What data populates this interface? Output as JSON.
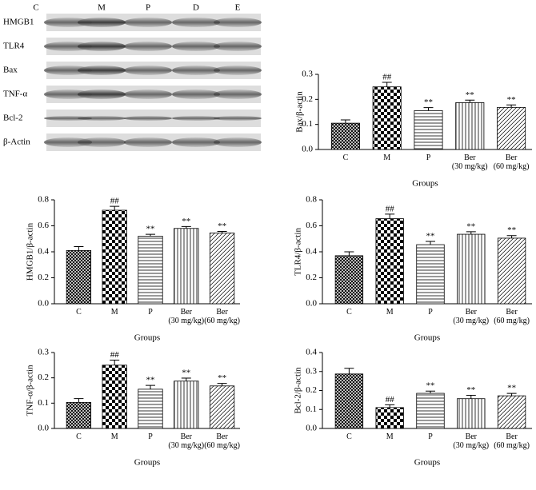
{
  "blot": {
    "lanes": [
      "C",
      "M",
      "P",
      "D",
      "E"
    ],
    "rows": [
      "HMGB1",
      "TLR4",
      "Bax",
      "TNF-α",
      "Bcl-2",
      "β-Actin"
    ]
  },
  "chart_data": [
    {
      "type": "bar",
      "ylabel": "Bax/β-actin",
      "xlabel": "Groups",
      "categories": [
        "C",
        "M",
        "P",
        "Ber\n(30 mg/kg)",
        "Ber\n(60 mg/kg)"
      ],
      "values": [
        0.105,
        0.25,
        0.155,
        0.187,
        0.168
      ],
      "errors": [
        0.013,
        0.018,
        0.012,
        0.01,
        0.01
      ],
      "annotations": [
        null,
        "##",
        "**",
        "**",
        "**"
      ],
      "ylim": [
        0,
        0.3
      ],
      "yticks": [
        {
          "value": 0,
          "label": "0.0"
        },
        0.1,
        0.2,
        0.3
      ]
    },
    {
      "type": "bar",
      "ylabel": "HMGB1/β-actin",
      "xlabel": "Groups",
      "categories": [
        "C",
        "M",
        "P",
        "Ber\n(30 mg/kg)",
        "Ber\n(60 mg/kg)"
      ],
      "values": [
        0.41,
        0.72,
        0.52,
        0.58,
        0.545
      ],
      "errors": [
        0.03,
        0.03,
        0.015,
        0.015,
        0.012
      ],
      "annotations": [
        null,
        "##",
        "**",
        "**",
        "**"
      ],
      "ylim": [
        0,
        0.8
      ],
      "yticks": [
        {
          "value": 0,
          "label": "0.0"
        },
        0.2,
        0.4,
        0.6,
        0.8
      ]
    },
    {
      "type": "bar",
      "ylabel": "TLR4/β-actin",
      "xlabel": "Groups",
      "categories": [
        "C",
        "M",
        "P",
        "Ber\n(30 mg/kg)",
        "Ber\n(60 mg/kg)"
      ],
      "values": [
        0.37,
        0.655,
        0.455,
        0.535,
        0.505
      ],
      "errors": [
        0.03,
        0.035,
        0.025,
        0.02,
        0.02
      ],
      "annotations": [
        null,
        "##",
        "**",
        "**",
        "**"
      ],
      "ylim": [
        0,
        0.8
      ],
      "yticks": [
        {
          "value": 0,
          "label": "0.0"
        },
        0.2,
        0.4,
        0.6,
        0.8
      ]
    },
    {
      "type": "bar",
      "ylabel": "TNF-α/β-actin",
      "xlabel": "Groups",
      "categories": [
        "C",
        "M",
        "P",
        "Ber\n(30 mg/kg)",
        "Ber\n(60 mg/kg)"
      ],
      "values": [
        0.103,
        0.25,
        0.155,
        0.187,
        0.168
      ],
      "errors": [
        0.015,
        0.02,
        0.015,
        0.012,
        0.01
      ],
      "annotations": [
        null,
        "##",
        "**",
        "**",
        "**"
      ],
      "ylim": [
        0,
        0.3
      ],
      "yticks": [
        {
          "value": 0,
          "label": "0.0"
        },
        0.1,
        0.2,
        0.3
      ]
    },
    {
      "type": "bar",
      "ylabel": "Bcl-2/β-actin",
      "xlabel": "Groups",
      "categories": [
        "C",
        "M",
        "P",
        "Ber\n(30 mg/kg)",
        "Ber\n(60 mg/kg)"
      ],
      "values": [
        0.287,
        0.11,
        0.185,
        0.157,
        0.172
      ],
      "errors": [
        0.03,
        0.015,
        0.012,
        0.018,
        0.013
      ],
      "annotations": [
        null,
        "##",
        "**",
        "**",
        "**"
      ],
      "ylim": [
        0,
        0.4
      ],
      "yticks": [
        {
          "value": 0,
          "label": "0.0"
        },
        0.1,
        0.2,
        0.3,
        0.4
      ]
    }
  ]
}
